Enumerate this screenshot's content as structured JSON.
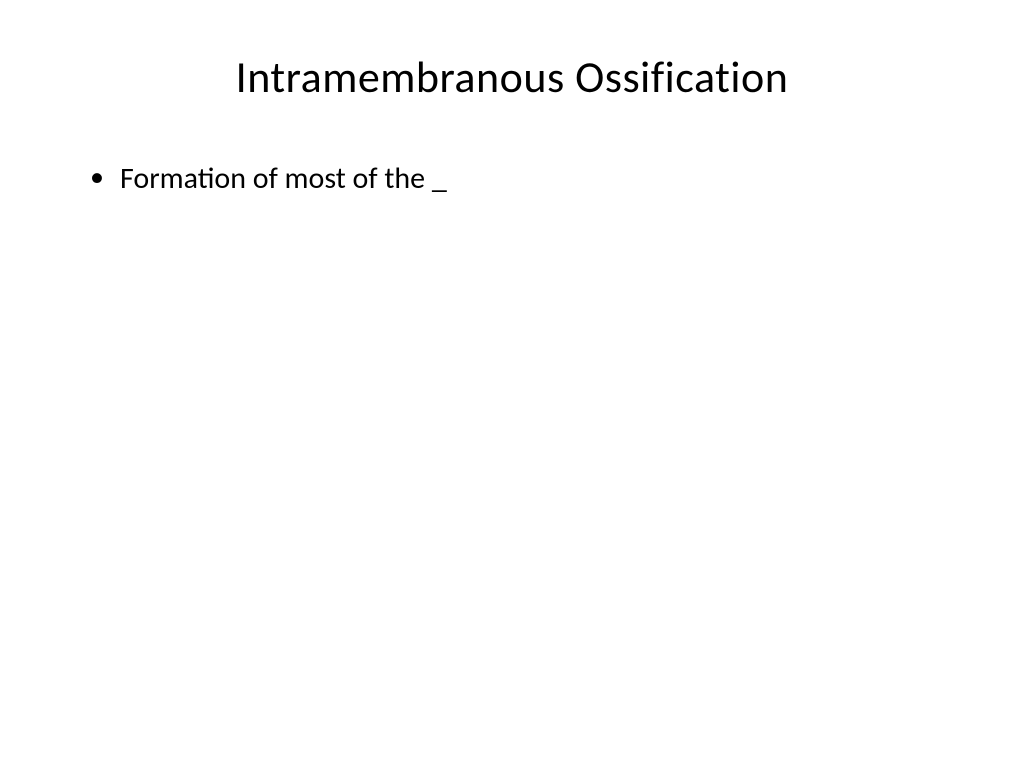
{
  "slide": {
    "title": "Intramembranous Ossification",
    "bullets": [
      {
        "text": "Formation of most of the _"
      }
    ],
    "background_color": "#ffffff",
    "text_color": "#000000",
    "title_fontsize": 44,
    "body_fontsize": 30,
    "font_family": "Calibri"
  }
}
